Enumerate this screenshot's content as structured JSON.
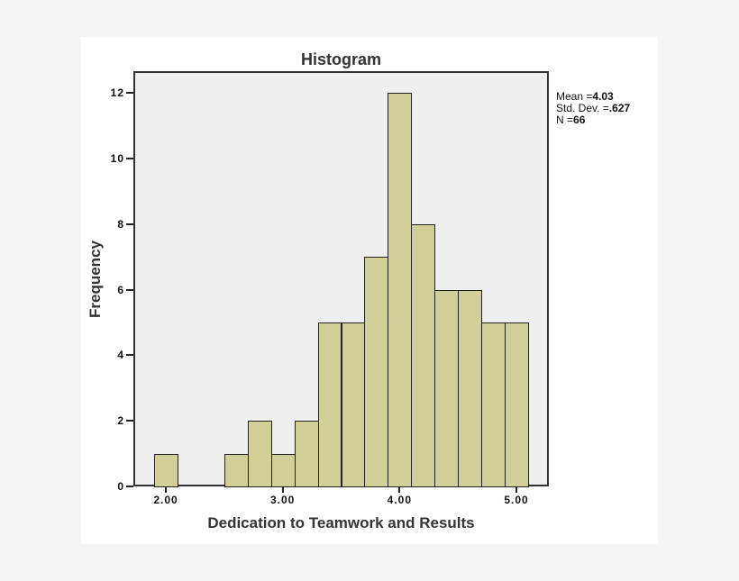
{
  "chart_data": {
    "type": "bar",
    "title": "Histogram",
    "xlabel": "Dedication to Teamwork and Results",
    "ylabel": "Frequency",
    "bin_width": 0.2,
    "bins": [
      {
        "start": 1.9,
        "end": 2.1,
        "count": 1
      },
      {
        "start": 2.1,
        "end": 2.3,
        "count": 0
      },
      {
        "start": 2.3,
        "end": 2.5,
        "count": 0
      },
      {
        "start": 2.5,
        "end": 2.7,
        "count": 1
      },
      {
        "start": 2.7,
        "end": 2.9,
        "count": 2
      },
      {
        "start": 2.9,
        "end": 3.1,
        "count": 1
      },
      {
        "start": 3.1,
        "end": 3.3,
        "count": 2
      },
      {
        "start": 3.3,
        "end": 3.5,
        "count": 5
      },
      {
        "start": 3.5,
        "end": 3.7,
        "count": 5
      },
      {
        "start": 3.7,
        "end": 3.9,
        "count": 7
      },
      {
        "start": 3.9,
        "end": 4.1,
        "count": 12
      },
      {
        "start": 4.1,
        "end": 4.3,
        "count": 8
      },
      {
        "start": 4.3,
        "end": 4.5,
        "count": 6
      },
      {
        "start": 4.5,
        "end": 4.7,
        "count": 6
      },
      {
        "start": 4.7,
        "end": 4.9,
        "count": 5
      },
      {
        "start": 4.9,
        "end": 5.1,
        "count": 5
      }
    ],
    "x_ticks": [
      "2.00",
      "3.00",
      "4.00",
      "5.00"
    ],
    "x_tick_values": [
      2,
      3,
      4,
      5
    ],
    "y_ticks": [
      "0",
      "2",
      "4",
      "6",
      "8",
      "10",
      "12"
    ],
    "ylim": [
      0,
      12
    ],
    "stats": {
      "mean": "4.03",
      "std_dev": ".627",
      "n": "66"
    },
    "colors": {
      "bar_fill": "#d2cf98",
      "bar_edge": "#222222",
      "plot_bg": "#efefef"
    }
  },
  "legend": {
    "mean_label": "Mean =",
    "mean_value": "4.03",
    "sd_label": "Std. Dev. =",
    "sd_value": ".627",
    "n_label": "N =",
    "n_value": "66"
  }
}
